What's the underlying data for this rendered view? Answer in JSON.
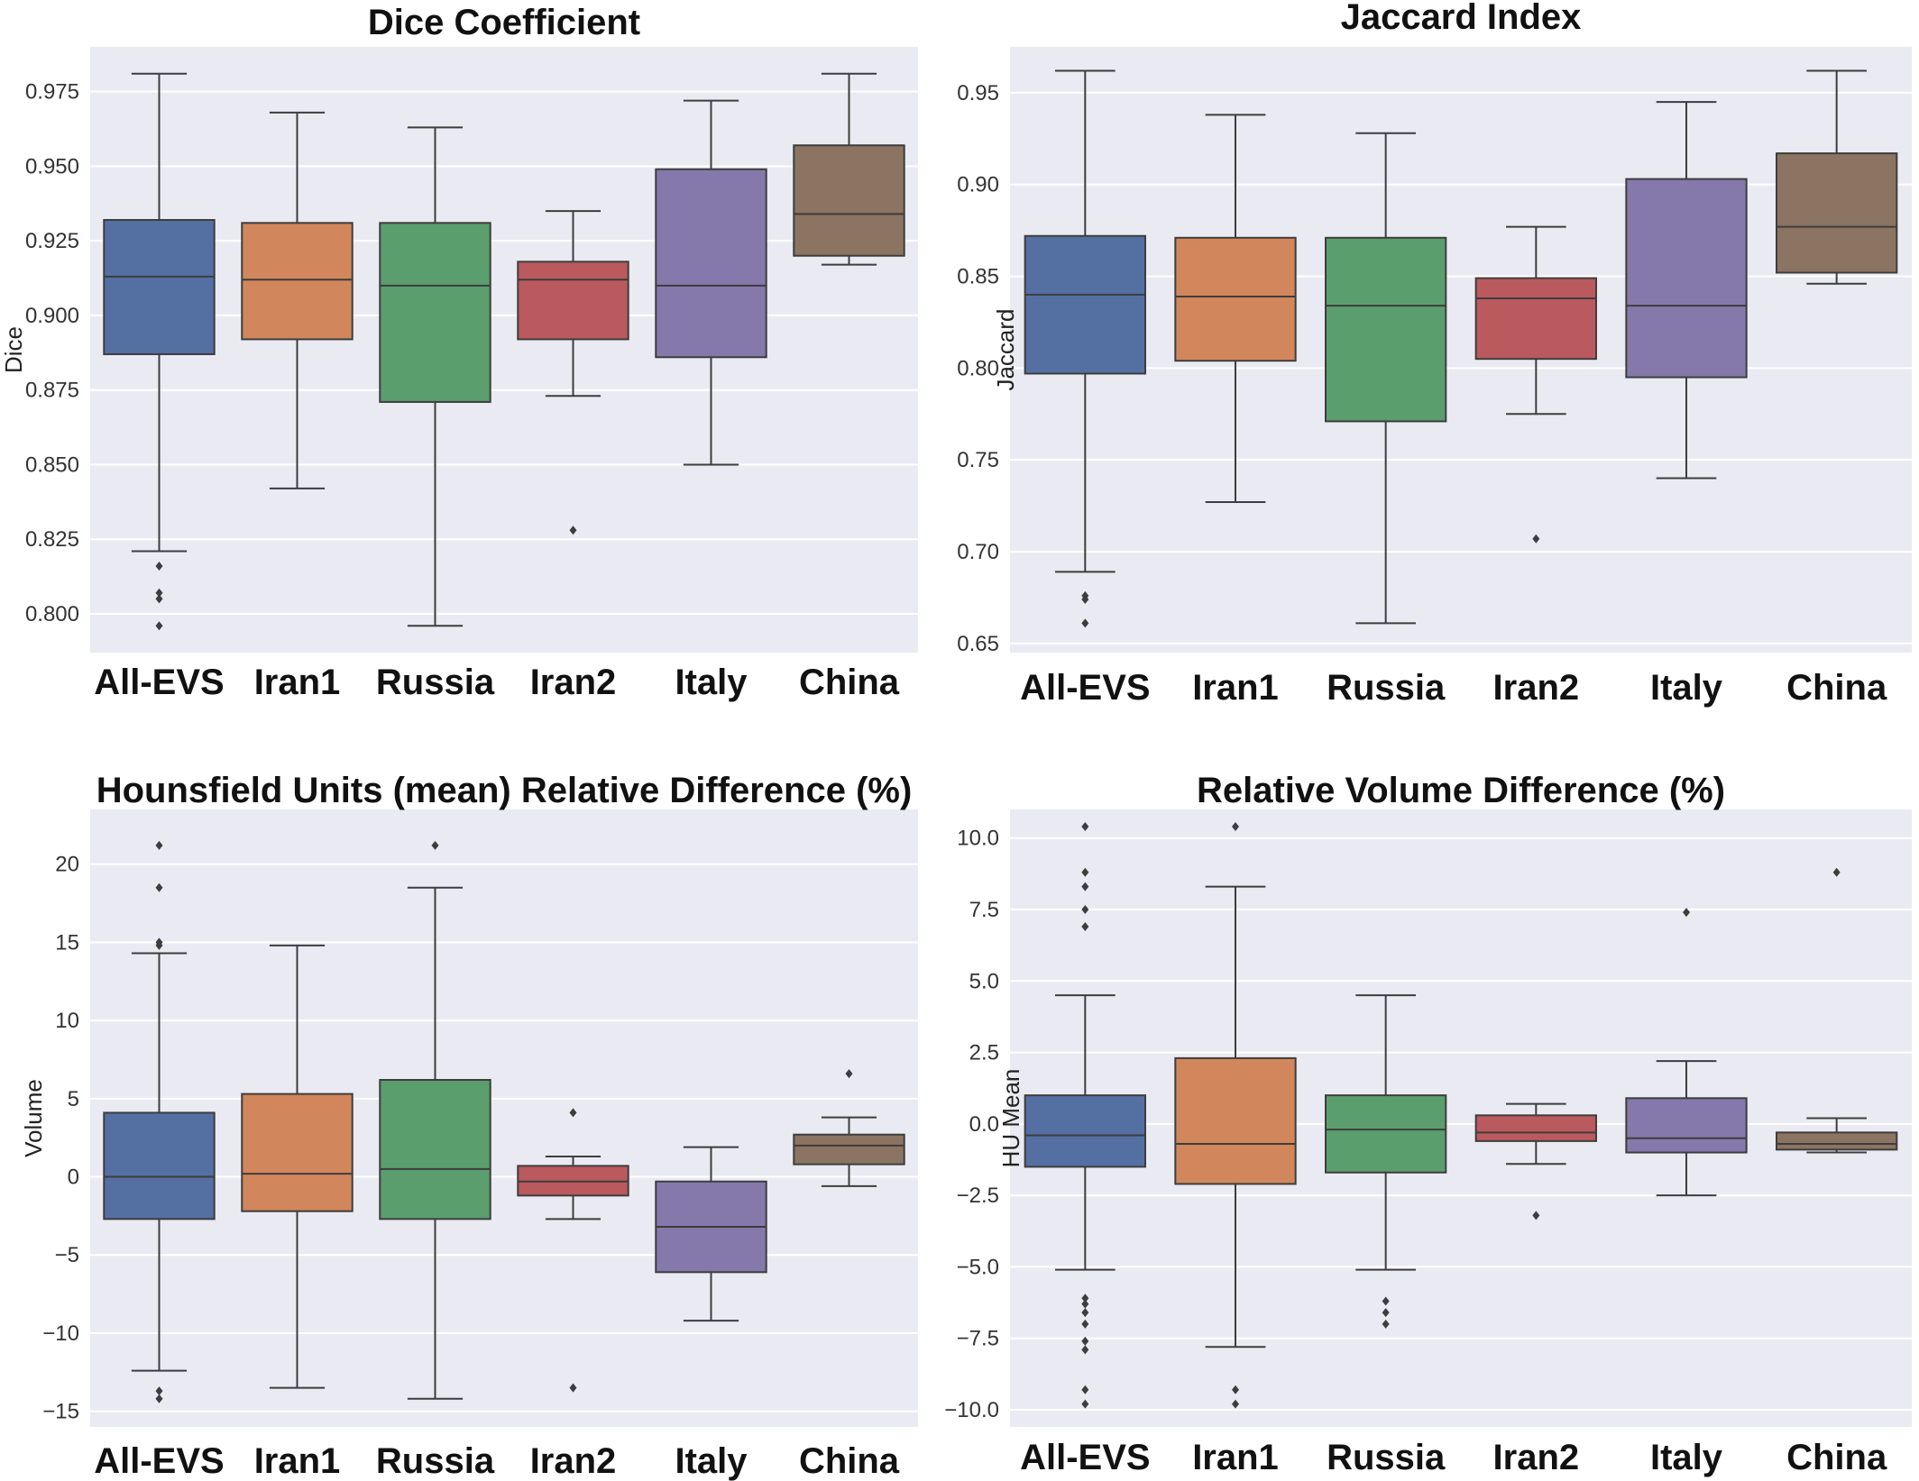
{
  "chart_data": [
    {
      "type": "box",
      "title": "Dice Coefficient",
      "ylabel": "Dice",
      "ylim": [
        0.787,
        0.99
      ],
      "yticks": [
        "0.800",
        "0.825",
        "0.850",
        "0.875",
        "0.900",
        "0.925",
        "0.950",
        "0.975"
      ],
      "categories": [
        "All-EVS",
        "Iran1",
        "Russia",
        "Iran2",
        "Italy",
        "China"
      ],
      "colors": [
        "#5470a3",
        "#d1875b",
        "#5b9e6e",
        "#bb5a5e",
        "#8579ab",
        "#8b7461"
      ],
      "boxes": [
        {
          "low": 0.821,
          "q1": 0.887,
          "median": 0.913,
          "q3": 0.932,
          "high": 0.981,
          "outliers": [
            0.816,
            0.807,
            0.805,
            0.796
          ]
        },
        {
          "low": 0.842,
          "q1": 0.892,
          "median": 0.912,
          "q3": 0.931,
          "high": 0.968,
          "outliers": []
        },
        {
          "low": 0.796,
          "q1": 0.871,
          "median": 0.91,
          "q3": 0.931,
          "high": 0.963,
          "outliers": []
        },
        {
          "low": 0.873,
          "q1": 0.892,
          "median": 0.912,
          "q3": 0.918,
          "high": 0.935,
          "outliers": [
            0.828
          ]
        },
        {
          "low": 0.85,
          "q1": 0.886,
          "median": 0.91,
          "q3": 0.949,
          "high": 0.972,
          "outliers": []
        },
        {
          "low": 0.917,
          "q1": 0.92,
          "median": 0.934,
          "q3": 0.957,
          "high": 0.981,
          "outliers": []
        }
      ]
    },
    {
      "type": "box",
      "title": "Jaccard Index",
      "ylabel": "Jaccard",
      "ylim": [
        0.645,
        0.975
      ],
      "yticks": [
        "0.65",
        "0.70",
        "0.75",
        "0.80",
        "0.85",
        "0.90",
        "0.95"
      ],
      "categories": [
        "All-EVS",
        "Iran1",
        "Russia",
        "Iran2",
        "Italy",
        "China"
      ],
      "colors": [
        "#5470a3",
        "#d1875b",
        "#5b9e6e",
        "#bb5a5e",
        "#8579ab",
        "#8b7461"
      ],
      "boxes": [
        {
          "low": 0.689,
          "q1": 0.797,
          "median": 0.84,
          "q3": 0.872,
          "high": 0.962,
          "outliers": [
            0.676,
            0.674,
            0.661
          ]
        },
        {
          "low": 0.727,
          "q1": 0.804,
          "median": 0.839,
          "q3": 0.871,
          "high": 0.938,
          "outliers": []
        },
        {
          "low": 0.661,
          "q1": 0.771,
          "median": 0.834,
          "q3": 0.871,
          "high": 0.928,
          "outliers": []
        },
        {
          "low": 0.775,
          "q1": 0.805,
          "median": 0.838,
          "q3": 0.849,
          "high": 0.877,
          "outliers": [
            0.707
          ]
        },
        {
          "low": 0.74,
          "q1": 0.795,
          "median": 0.834,
          "q3": 0.903,
          "high": 0.945,
          "outliers": []
        },
        {
          "low": 0.846,
          "q1": 0.852,
          "median": 0.877,
          "q3": 0.917,
          "high": 0.962,
          "outliers": []
        }
      ]
    },
    {
      "type": "box",
      "title": "Hounsfield Units (mean) Relative Difference (%)",
      "ylabel": "Volume",
      "ylim": [
        -16.0,
        23.5
      ],
      "yticks": [
        "−15",
        "−10",
        "−5",
        "0",
        "5",
        "10",
        "15",
        "20"
      ],
      "categories": [
        "All-EVS",
        "Iran1",
        "Russia",
        "Iran2",
        "Italy",
        "China"
      ],
      "colors": [
        "#5470a3",
        "#d1875b",
        "#5b9e6e",
        "#bb5a5e",
        "#8579ab",
        "#8b7461"
      ],
      "boxes": [
        {
          "low": -12.4,
          "q1": -2.7,
          "median": 0.0,
          "q3": 4.1,
          "high": 14.3,
          "outliers": [
            21.2,
            18.5,
            15.0,
            14.8,
            -13.7,
            -14.2
          ]
        },
        {
          "low": -13.5,
          "q1": -2.2,
          "median": 0.2,
          "q3": 5.3,
          "high": 14.8,
          "outliers": []
        },
        {
          "low": -14.2,
          "q1": -2.7,
          "median": 0.5,
          "q3": 6.2,
          "high": 18.5,
          "outliers": [
            21.2
          ]
        },
        {
          "low": -2.7,
          "q1": -1.2,
          "median": -0.3,
          "q3": 0.7,
          "high": 1.3,
          "outliers": [
            4.1,
            -13.5
          ]
        },
        {
          "low": -9.2,
          "q1": -6.1,
          "median": -3.2,
          "q3": -0.3,
          "high": 1.9,
          "outliers": []
        },
        {
          "low": -0.6,
          "q1": 0.8,
          "median": 2.0,
          "q3": 2.7,
          "high": 3.8,
          "outliers": [
            6.6
          ]
        }
      ]
    },
    {
      "type": "box",
      "title": "Relative Volume Difference (%)",
      "ylabel": "HU Mean",
      "ylim": [
        -10.6,
        11.0
      ],
      "yticks": [
        "−10.0",
        "−7.5",
        "−5.0",
        "−2.5",
        "0.0",
        "2.5",
        "5.0",
        "7.5",
        "10.0"
      ],
      "categories": [
        "All-EVS",
        "Iran1",
        "Russia",
        "Iran2",
        "Italy",
        "China"
      ],
      "colors": [
        "#5470a3",
        "#d1875b",
        "#5b9e6e",
        "#bb5a5e",
        "#8579ab",
        "#8b7461"
      ],
      "boxes": [
        {
          "low": -5.1,
          "q1": -1.5,
          "median": -0.4,
          "q3": 1.0,
          "high": 4.5,
          "outliers": [
            10.4,
            8.8,
            8.3,
            7.5,
            6.9,
            -6.1,
            -6.3,
            -6.6,
            -7.0,
            -7.6,
            -7.9,
            -9.3,
            -9.8
          ]
        },
        {
          "low": -7.8,
          "q1": -2.1,
          "median": -0.7,
          "q3": 2.3,
          "high": 8.3,
          "outliers": [
            10.4,
            -9.3,
            -9.8
          ]
        },
        {
          "low": -5.1,
          "q1": -1.7,
          "median": -0.2,
          "q3": 1.0,
          "high": 4.5,
          "outliers": [
            -6.2,
            -6.6,
            -7.0
          ]
        },
        {
          "low": -1.4,
          "q1": -0.6,
          "median": -0.3,
          "q3": 0.3,
          "high": 0.7,
          "outliers": [
            -3.2
          ]
        },
        {
          "low": -2.5,
          "q1": -1.0,
          "median": -0.5,
          "q3": 0.9,
          "high": 2.2,
          "outliers": [
            7.4
          ]
        },
        {
          "low": -1.0,
          "q1": -0.9,
          "median": -0.7,
          "q3": -0.3,
          "high": 0.2,
          "outliers": [
            8.8
          ]
        }
      ]
    }
  ]
}
